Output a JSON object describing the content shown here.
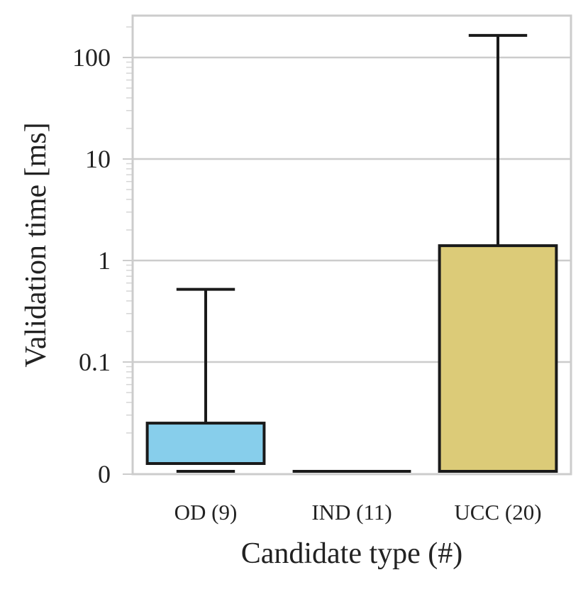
{
  "chart_data": {
    "type": "box",
    "title": "",
    "xlabel": "Candidate type (#)",
    "ylabel": "Validation time [ms]",
    "y_scale": "symlog",
    "ylim": [
      0,
      250
    ],
    "y_ticks": [
      {
        "value": 0,
        "label": "0"
      },
      {
        "value": 0.1,
        "label": "0.1"
      },
      {
        "value": 1,
        "label": "1"
      },
      {
        "value": 10,
        "label": "10"
      },
      {
        "value": 100,
        "label": "100"
      }
    ],
    "grid": "horizontal major gridlines",
    "categories": [
      "OD (9)",
      "IND (11)",
      "UCC (20)"
    ],
    "boxes": [
      {
        "category": "OD (9)",
        "whisker_low": 0.005,
        "q1": 0.01,
        "median": 0.01,
        "q3": 0.025,
        "whisker_high": 0.52,
        "color": "#87CEEB"
      },
      {
        "category": "IND (11)",
        "whisker_low": 0.005,
        "q1": 0.005,
        "median": 0.005,
        "q3": 0.005,
        "whisker_high": 0.005,
        "color": "#b8b8d8"
      },
      {
        "category": "UCC (20)",
        "whisker_low": 0.005,
        "q1": 0.005,
        "median": 0.005,
        "q3": 1.4,
        "whisker_high": 165,
        "color": "#DCCB78"
      }
    ]
  }
}
